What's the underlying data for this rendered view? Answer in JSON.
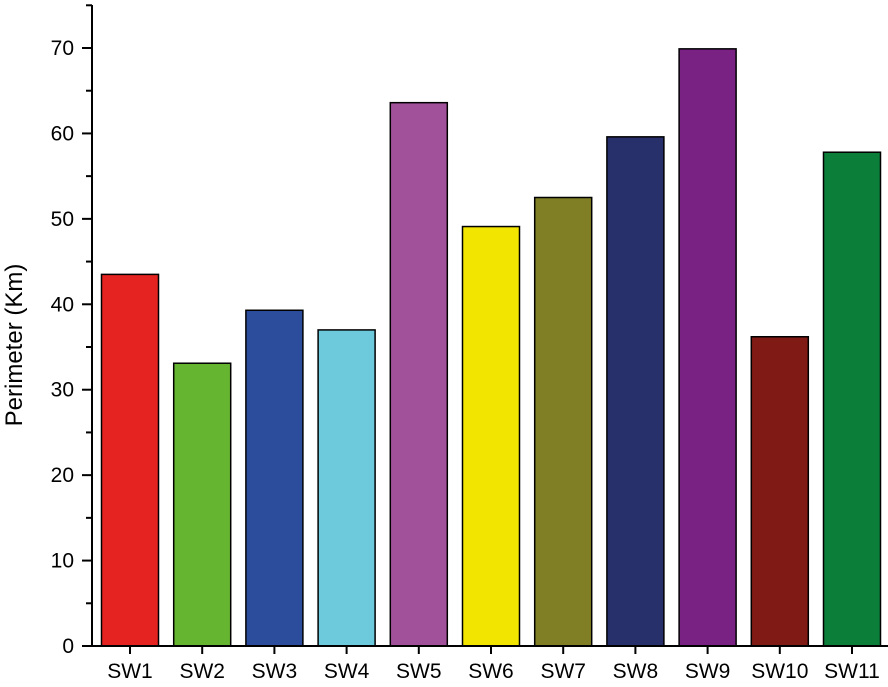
{
  "chart_data": {
    "type": "bar",
    "title": "",
    "xlabel": "",
    "ylabel": "Perimeter (Km)",
    "ylim": [
      0,
      75
    ],
    "y_ticks": [
      0,
      10,
      20,
      30,
      40,
      50,
      60,
      70
    ],
    "grid": false,
    "legend": "none",
    "categories": [
      "SW1",
      "SW2",
      "SW3",
      "SW4",
      "SW5",
      "SW6",
      "SW7",
      "SW8",
      "SW9",
      "SW10",
      "SW11"
    ],
    "values": [
      43.5,
      33.1,
      39.3,
      37.0,
      63.6,
      49.1,
      52.5,
      59.6,
      69.9,
      36.2,
      57.8
    ],
    "colors": [
      "#e52421",
      "#66b531",
      "#2c4d9c",
      "#6dc9dc",
      "#a0519a",
      "#f2e500",
      "#807f26",
      "#27306b",
      "#7a2283",
      "#7f1a14",
      "#0b7f3a"
    ]
  }
}
